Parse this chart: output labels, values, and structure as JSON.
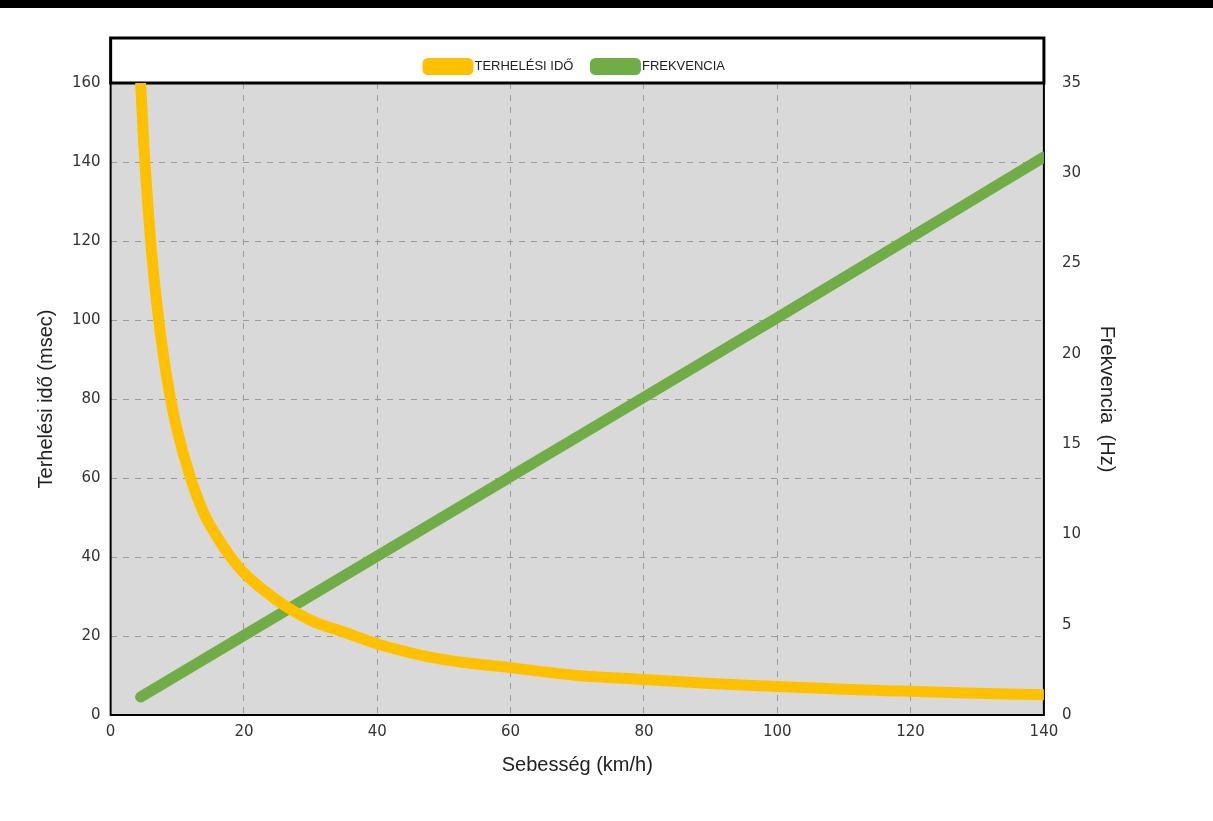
{
  "chart_data": {
    "type": "line",
    "xlabel": "Sebesség (km/h)",
    "ylabel": "Terhelési idő (msec)",
    "y2label": "Frekvencia  (Hz)",
    "xlim": [
      0,
      140
    ],
    "xticks": [
      0,
      20,
      40,
      60,
      80,
      100,
      120,
      140
    ],
    "ylim": [
      0,
      160
    ],
    "yticks": [
      0,
      20,
      40,
      60,
      80,
      100,
      120,
      140,
      160
    ],
    "y2lim": [
      0,
      35
    ],
    "y2ticks": [
      0,
      5,
      10,
      15,
      20,
      25,
      30,
      35
    ],
    "grid": true,
    "legend": "top",
    "marker": "none",
    "line_style": "solid",
    "series": [
      {
        "name": "TERHELÉSI IDŐ",
        "color": "#ffc000",
        "x": [
          4.5,
          5,
          6,
          7,
          8,
          9,
          10,
          12,
          14,
          16,
          18,
          20,
          25,
          30,
          35,
          40,
          50,
          60,
          70,
          80,
          90,
          100,
          110,
          120,
          130,
          140
        ],
        "values": [
          160,
          144,
          120,
          103,
          90,
          80,
          72,
          60,
          51,
          45,
          40,
          36,
          29,
          24,
          21,
          18,
          14,
          12,
          10,
          9,
          8,
          7.2,
          6.5,
          6,
          5.5,
          5.1
        ]
      },
      {
        "name": "FREKVENCIA",
        "color": "#70ad47",
        "axis": "y2",
        "x": [
          4.5,
          60,
          100,
          140
        ],
        "values": [
          1,
          13.2,
          22,
          30.9
        ]
      }
    ]
  }
}
